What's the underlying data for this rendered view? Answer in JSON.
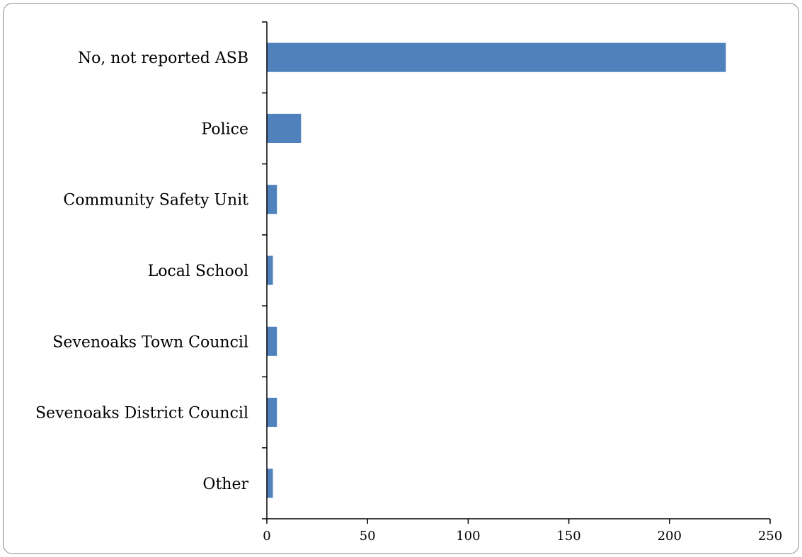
{
  "chart_data": {
    "type": "bar",
    "orientation": "horizontal",
    "categories": [
      "No, not reported ASB",
      "Police",
      "Community Safety Unit",
      "Local School",
      "Sevenoaks Town Council",
      "Sevenoaks District Council",
      "Other"
    ],
    "values": [
      228,
      17,
      5,
      3,
      5,
      5,
      3
    ],
    "xlim": [
      0,
      250
    ],
    "xticks": [
      0,
      50,
      100,
      150,
      200,
      250
    ],
    "title": "",
    "xlabel": "",
    "ylabel": "",
    "grid": false,
    "legend": "none",
    "bar_color": "#4f81bd"
  }
}
